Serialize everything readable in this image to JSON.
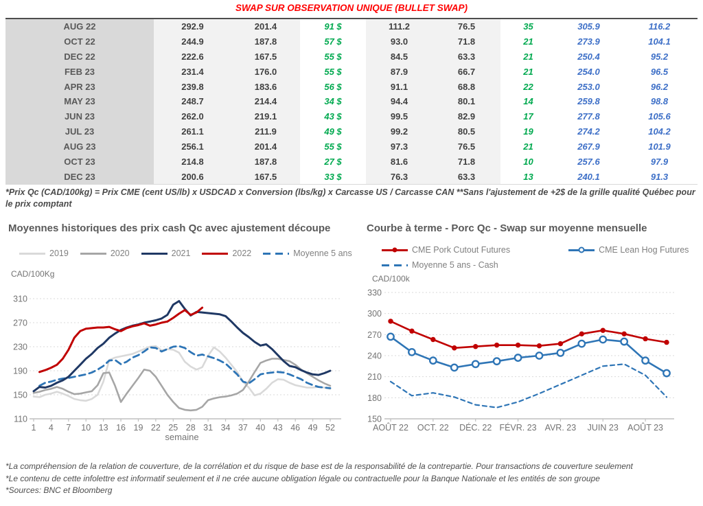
{
  "title": "SWAP SUR OBSERVATION UNIQUE (BULLET SWAP)",
  "colors": {
    "title_red": "#ff0000",
    "green": "#00a94f",
    "blue": "#3d6fc7",
    "text_gray": "#595959",
    "num_gray": "#404040",
    "band_gray": "#d9d9d9",
    "band_light": "#f2f2f2"
  },
  "table": {
    "rows": [
      {
        "month": "AUG 22",
        "cells": [
          "292.9",
          "201.4",
          "91 $",
          "111.2",
          "76.5",
          "35",
          "305.9",
          "116.2"
        ]
      },
      {
        "month": "OCT 22",
        "cells": [
          "244.9",
          "187.8",
          "57 $",
          "93.0",
          "71.8",
          "21",
          "273.9",
          "104.1"
        ]
      },
      {
        "month": "DEC 22",
        "cells": [
          "222.6",
          "167.5",
          "55 $",
          "84.5",
          "63.3",
          "21",
          "250.4",
          "95.2"
        ]
      },
      {
        "month": "FEB 23",
        "cells": [
          "231.4",
          "176.0",
          "55 $",
          "87.9",
          "66.7",
          "21",
          "254.0",
          "96.5"
        ]
      },
      {
        "month": "APR 23",
        "cells": [
          "239.8",
          "183.6",
          "56 $",
          "91.1",
          "68.8",
          "22",
          "253.0",
          "96.2"
        ]
      },
      {
        "month": "MAY 23",
        "cells": [
          "248.7",
          "214.4",
          "34 $",
          "94.4",
          "80.1",
          "14",
          "259.8",
          "98.8"
        ]
      },
      {
        "month": "JUN 23",
        "cells": [
          "262.0",
          "219.1",
          "43 $",
          "99.5",
          "82.9",
          "17",
          "277.8",
          "105.6"
        ]
      },
      {
        "month": "JUL 23",
        "cells": [
          "261.1",
          "211.9",
          "49 $",
          "99.2",
          "80.5",
          "19",
          "274.2",
          "104.2"
        ]
      },
      {
        "month": "AUG 23",
        "cells": [
          "256.1",
          "201.4",
          "55 $",
          "97.3",
          "76.5",
          "21",
          "267.9",
          "101.9"
        ]
      },
      {
        "month": "OCT 23",
        "cells": [
          "214.8",
          "187.8",
          "27 $",
          "81.6",
          "71.8",
          "10",
          "257.6",
          "97.9"
        ]
      },
      {
        "month": "DEC 23",
        "cells": [
          "200.6",
          "167.5",
          "33 $",
          "76.3",
          "63.3",
          "13",
          "240.1",
          "91.3"
        ]
      }
    ]
  },
  "table_footnote": "*Prix Qc (CAD/100kg) = Prix CME (cent US/lb) x USDCAD x Conversion (lbs/kg) x Carcasse US / Carcasse CAN **Sans l'ajustement de +2$ de la grille qualité Québec pour le prix comptant",
  "footnotes": [
    "*La compréhension de la relation de couverture, de la corrélation et du risque de base est de la responsabilité de la contrepartie. Pour transactions de couverture seulement",
    "*Le contenu de cette infolettre est informatif seulement et il ne crée aucune obligation légale ou contractuelle pour la Banque Nationale et les entités de son groupe",
    "*Sources: BNC et Bloomberg"
  ],
  "chart_data": [
    {
      "type": "line",
      "title": "Moyennes historiques des prix cash Qc avec ajustement découpe",
      "ylabel": "CAD/100Kg",
      "xlabel": "semaine",
      "ylim": [
        110,
        310
      ],
      "yticks": [
        110,
        150,
        190,
        230,
        270,
        310
      ],
      "xticks": [
        1,
        4,
        7,
        10,
        13,
        16,
        19,
        22,
        25,
        28,
        31,
        34,
        37,
        40,
        43,
        46,
        49,
        52
      ],
      "grid": true,
      "legend_position": "top",
      "series": [
        {
          "name": "2019",
          "color": "#d9d9d9",
          "x_start": 1,
          "y": [
            147,
            146,
            150,
            152,
            155,
            152,
            148,
            143,
            141,
            140,
            143,
            150,
            172,
            208,
            212,
            214,
            216,
            218,
            222,
            226,
            230,
            231,
            224,
            226,
            225,
            220,
            205,
            197,
            192,
            196,
            215,
            229,
            222,
            212,
            200,
            188,
            172,
            162,
            149,
            152,
            160,
            170,
            176,
            175,
            170,
            166,
            164,
            162,
            162,
            163,
            162,
            160
          ]
        },
        {
          "name": "2020",
          "color": "#a6a6a6",
          "x_start": 1,
          "y": [
            153,
            155,
            158,
            160,
            163,
            160,
            155,
            151,
            152,
            154,
            156,
            166,
            186,
            187,
            165,
            138,
            152,
            165,
            178,
            192,
            190,
            180,
            165,
            150,
            138,
            128,
            125,
            124,
            125,
            130,
            141,
            144,
            146,
            147,
            149,
            152,
            158,
            172,
            188,
            203,
            207,
            210,
            210,
            208,
            206,
            200,
            192,
            186,
            180,
            174,
            169,
            165
          ]
        },
        {
          "name": "2021",
          "color": "#1f3864",
          "x_start": 1,
          "y": [
            156,
            163,
            162,
            165,
            170,
            174,
            180,
            190,
            200,
            210,
            218,
            228,
            235,
            245,
            252,
            258,
            262,
            265,
            267,
            270,
            272,
            274,
            277,
            283,
            300,
            306,
            293,
            282,
            288,
            287,
            286,
            285,
            284,
            281,
            272,
            262,
            253,
            246,
            238,
            232,
            234,
            226,
            216,
            206,
            198,
            196,
            191,
            187,
            184,
            183,
            186,
            190
          ]
        },
        {
          "name": "2022",
          "color": "#c00000",
          "x_start": 2,
          "y": [
            188,
            191,
            195,
            200,
            210,
            225,
            245,
            256,
            260,
            261,
            262,
            262,
            263,
            259,
            256,
            261,
            264,
            266,
            269,
            265,
            267,
            270,
            272,
            278,
            285,
            291,
            283,
            287,
            295
          ]
        },
        {
          "name": "Moyenne 5 ans",
          "color": "#2e75b6",
          "style": "dashed",
          "x_start": 2,
          "y": [
            165,
            170,
            172,
            175,
            177,
            178,
            180,
            182,
            184,
            187,
            192,
            198,
            207,
            208,
            201,
            205,
            212,
            216,
            222,
            229,
            228,
            222,
            226,
            230,
            231,
            228,
            221,
            215,
            217,
            214,
            211,
            207,
            202,
            193,
            184,
            172,
            169,
            176,
            184,
            186,
            187,
            188,
            187,
            184,
            180,
            176,
            170,
            166,
            163,
            162,
            161
          ]
        }
      ]
    },
    {
      "type": "line",
      "title": "Courbe à terme - Porc Qc - Swap sur moyenne mensuelle",
      "ylabel": "CAD/100k",
      "xlabel": "",
      "ylim": [
        150,
        330
      ],
      "yticks": [
        150,
        180,
        210,
        240,
        270,
        300,
        330
      ],
      "xtick_positions": [
        1,
        3,
        5,
        7,
        9,
        11,
        13
      ],
      "xtick_labels": [
        "AOÛT 22",
        "OCT. 22",
        "DÉC. 22",
        "FÉVR. 23",
        "AVR. 23",
        "JUIN 23",
        "AOÛT 23"
      ],
      "grid": true,
      "legend_position": "top",
      "series": [
        {
          "name": "CME Pork Cutout Futures",
          "color": "#c00000",
          "marker": "filled",
          "x_start": 1,
          "y": [
            289,
            275,
            263,
            251,
            253,
            255,
            255,
            254,
            257,
            271,
            276,
            271,
            264,
            259
          ]
        },
        {
          "name": "CME Lean Hog Futures",
          "color": "#2e75b6",
          "marker": "open",
          "x_start": 1,
          "y": [
            267,
            245,
            233,
            223,
            228,
            232,
            237,
            240,
            244,
            257,
            263,
            260,
            233,
            215
          ]
        },
        {
          "name": "Moyenne 5 ans - Cash",
          "color": "#2e75b6",
          "style": "dashed",
          "x_start": 1,
          "y": [
            203,
            183,
            187,
            181,
            170,
            166,
            174,
            186,
            199,
            212,
            225,
            228,
            212,
            181
          ]
        }
      ]
    }
  ]
}
